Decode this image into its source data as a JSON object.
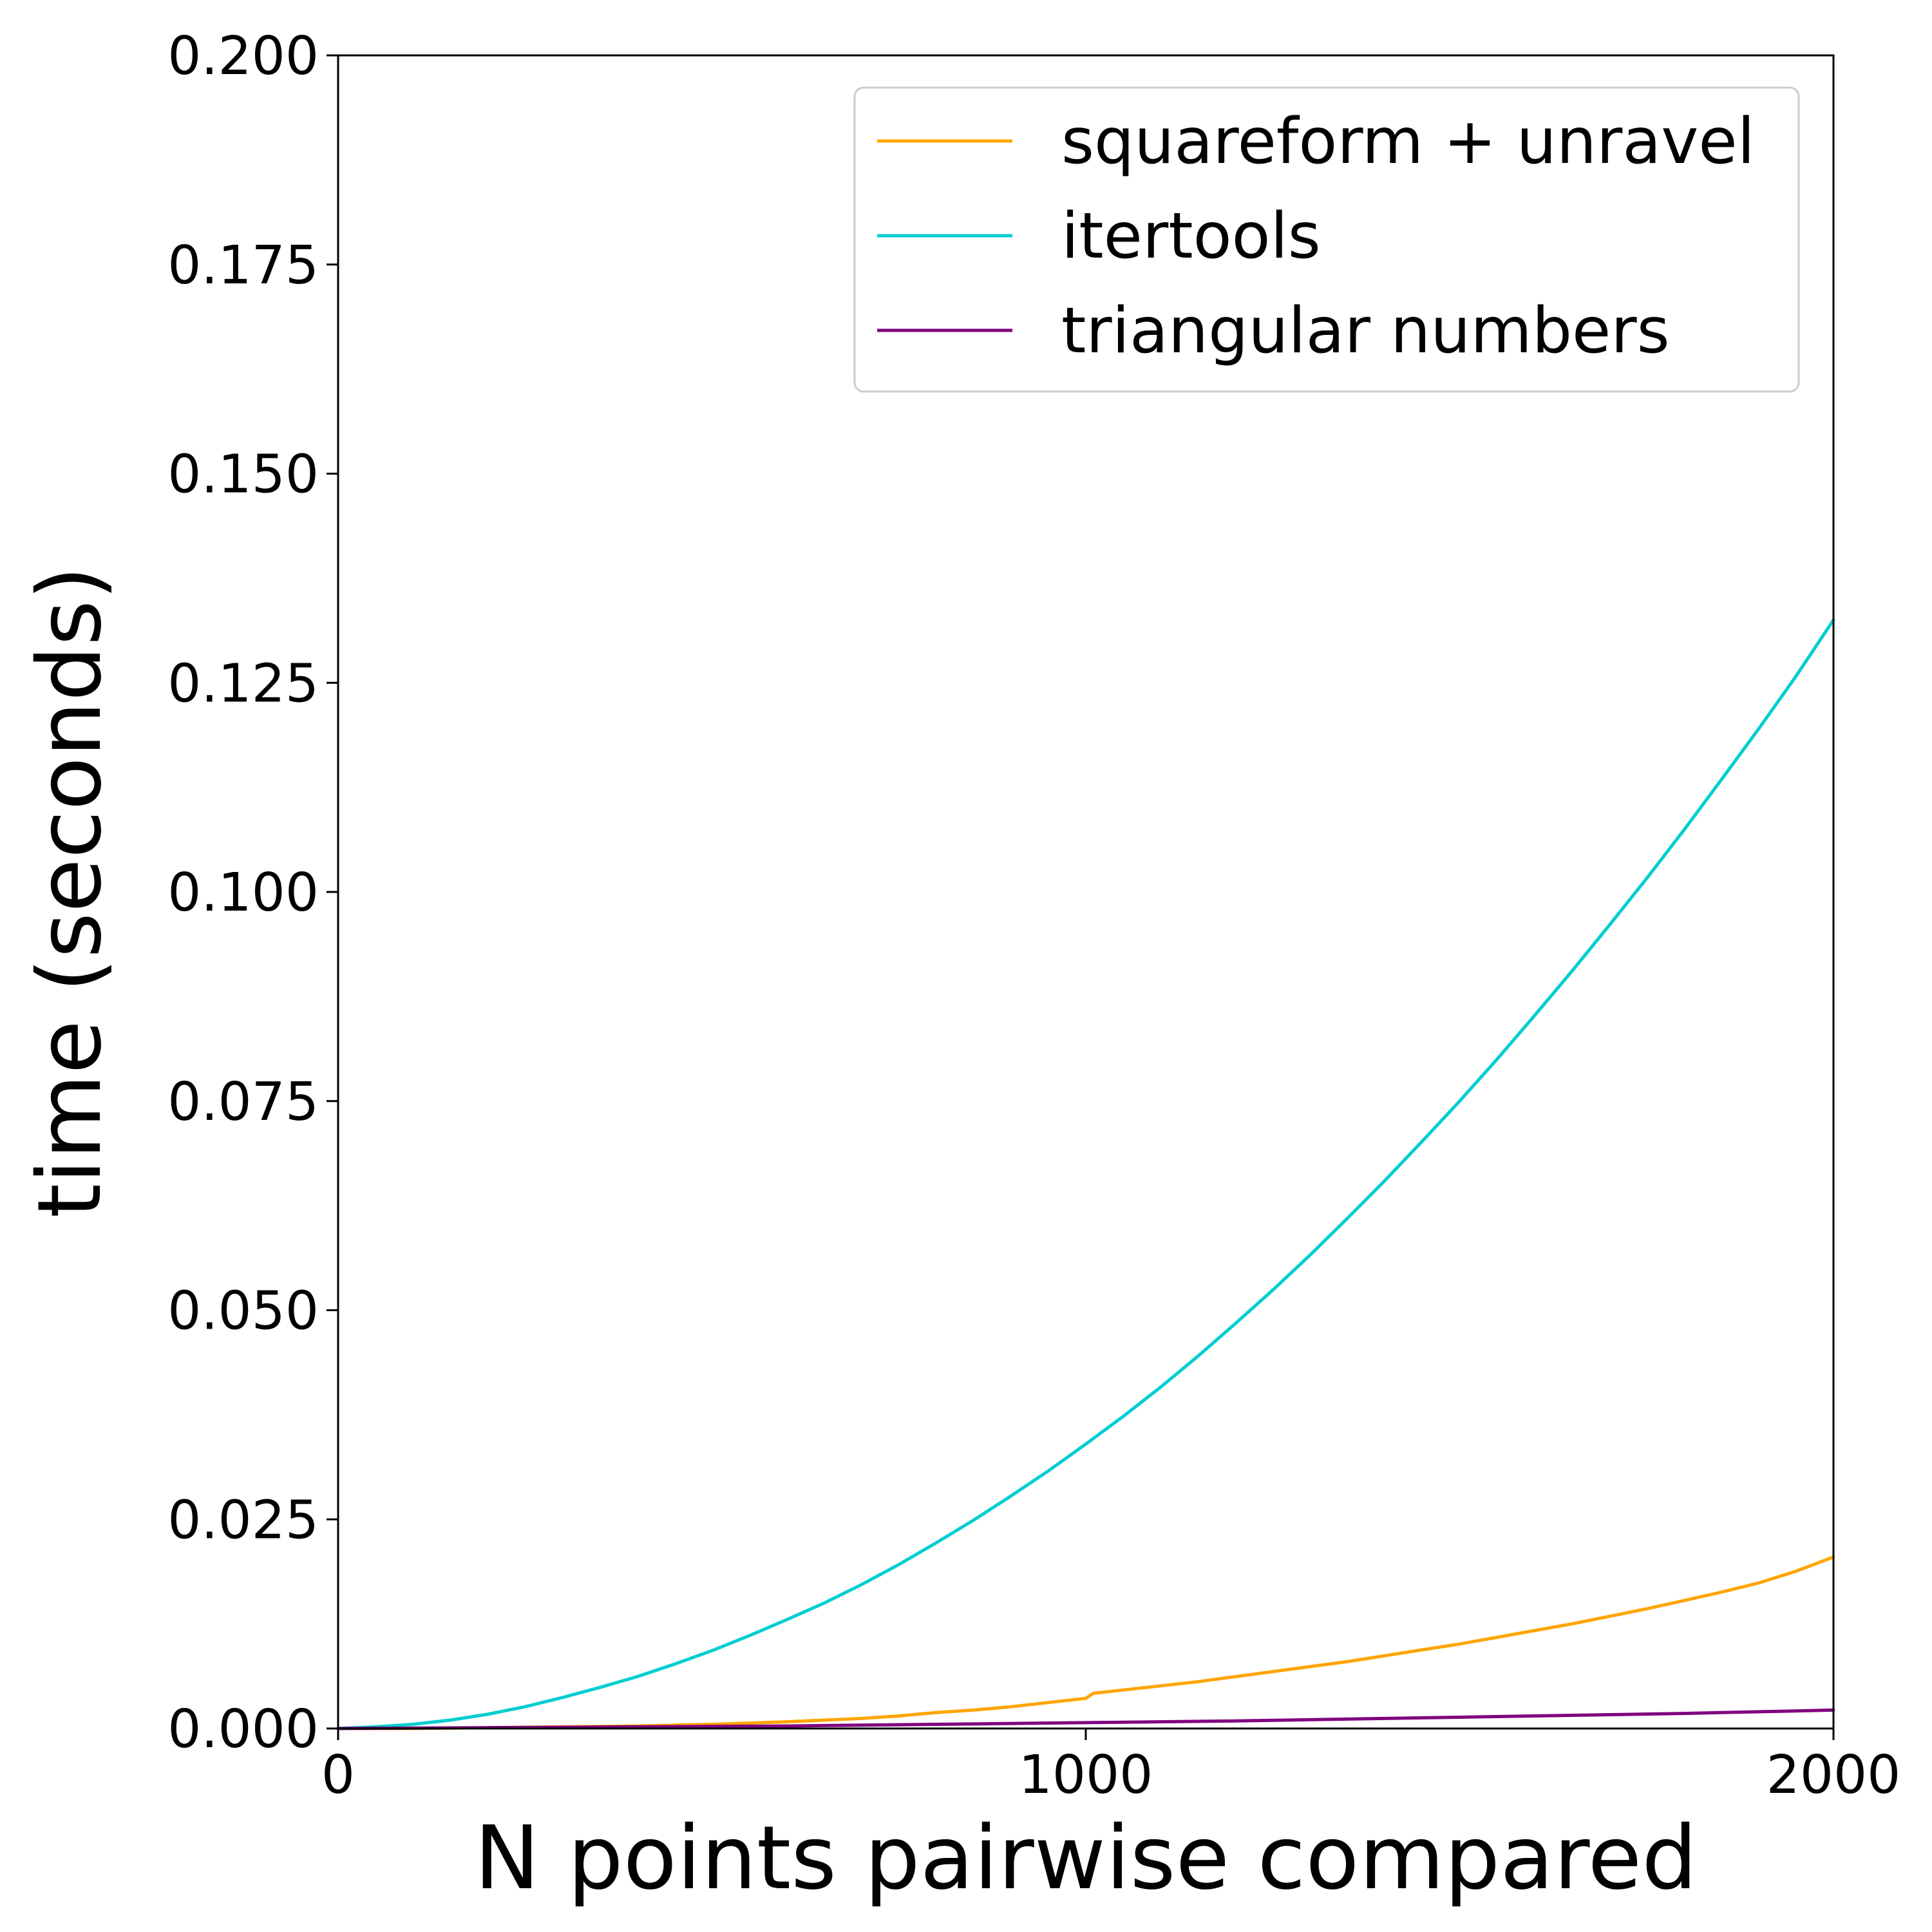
{
  "chart_data": {
    "type": "line",
    "title": "",
    "xlabel": "N points pairwise compared",
    "ylabel": "time (seconds)",
    "xlim": [
      0,
      2000
    ],
    "ylim": [
      0,
      0.2
    ],
    "xticks": [
      0,
      1000,
      2000
    ],
    "xtick_labels": [
      "0",
      "1000",
      "2000"
    ],
    "yticks": [
      0,
      0.025,
      0.05,
      0.075,
      0.1,
      0.125,
      0.15,
      0.175,
      0.2
    ],
    "ytick_labels": [
      "0.000",
      "0.025",
      "0.050",
      "0.075",
      "0.100",
      "0.125",
      "0.150",
      "0.175",
      "0.200"
    ],
    "grid": false,
    "legend_position": "top-right",
    "series": [
      {
        "name": "squareform + unravel",
        "color": "#ffa500",
        "x": [
          0,
          100,
          200,
          300,
          400,
          500,
          600,
          700,
          750,
          800,
          850,
          900,
          950,
          1000,
          1010,
          1050,
          1100,
          1150,
          1200,
          1250,
          1300,
          1350,
          1400,
          1450,
          1500,
          1550,
          1600,
          1650,
          1700,
          1750,
          1800,
          1850,
          1900,
          1950,
          2000
        ],
        "y": [
          0,
          0,
          0.0001,
          0.0002,
          0.0003,
          0.0005,
          0.0008,
          0.0012,
          0.0015,
          0.0019,
          0.0022,
          0.0026,
          0.0031,
          0.0036,
          0.0042,
          0.0046,
          0.0051,
          0.0056,
          0.0062,
          0.0068,
          0.0074,
          0.008,
          0.0087,
          0.0094,
          0.0101,
          0.0109,
          0.0117,
          0.0125,
          0.0134,
          0.0143,
          0.0153,
          0.0163,
          0.0174,
          0.0188,
          0.0205
        ]
      },
      {
        "name": "itertools",
        "color": "#00ced1",
        "x": [
          0,
          50,
          100,
          150,
          200,
          250,
          300,
          350,
          400,
          450,
          500,
          550,
          600,
          650,
          700,
          750,
          800,
          850,
          900,
          950,
          1000,
          1050,
          1100,
          1150,
          1200,
          1250,
          1300,
          1350,
          1400,
          1450,
          1500,
          1550,
          1600,
          1650,
          1700,
          1750,
          1800,
          1850,
          1900,
          1950,
          2000
        ],
        "y": [
          0,
          0.0002,
          0.0005,
          0.001,
          0.0017,
          0.0026,
          0.0037,
          0.0049,
          0.0062,
          0.0077,
          0.0093,
          0.0111,
          0.013,
          0.015,
          0.0172,
          0.0196,
          0.0222,
          0.0249,
          0.0278,
          0.0308,
          0.034,
          0.0373,
          0.0408,
          0.0445,
          0.0484,
          0.0524,
          0.0566,
          0.061,
          0.0655,
          0.0702,
          0.075,
          0.08,
          0.0852,
          0.0905,
          0.096,
          0.1016,
          0.1074,
          0.1134,
          0.1195,
          0.1258,
          0.1325
        ]
      },
      {
        "name": "triangular numbers",
        "color": "#800080",
        "x": [
          0,
          200,
          400,
          600,
          800,
          1000,
          1200,
          1400,
          1600,
          1800,
          2000
        ],
        "y": [
          0,
          0.0001,
          0.0002,
          0.0003,
          0.0005,
          0.0007,
          0.0009,
          0.0012,
          0.0015,
          0.0018,
          0.0022
        ]
      }
    ]
  }
}
